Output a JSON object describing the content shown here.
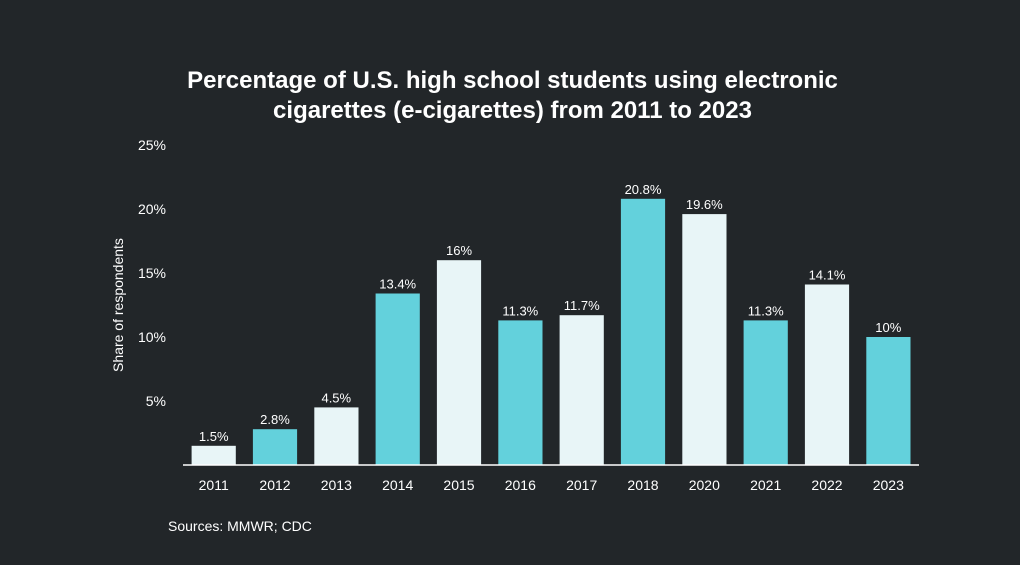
{
  "chart_data": {
    "type": "bar",
    "title": "Percentage of U.S. high school students using electronic cigarettes (e-cigarettes) from 2011 to 2023",
    "xlabel": "",
    "ylabel": "Share of respondents",
    "ylim": [
      0,
      25
    ],
    "yticks": [
      5,
      10,
      15,
      20,
      25
    ],
    "ytick_labels": [
      "5%",
      "10%",
      "15%",
      "20%",
      "25%"
    ],
    "categories": [
      "2011",
      "2012",
      "2013",
      "2014",
      "2015",
      "2016",
      "2017",
      "2018",
      "2020",
      "2021",
      "2022",
      "2023"
    ],
    "values": [
      1.5,
      2.8,
      4.5,
      13.4,
      16,
      11.3,
      11.7,
      20.8,
      19.6,
      11.3,
      14.1,
      10
    ],
    "value_labels": [
      "1.5%",
      "2.8%",
      "4.5%",
      "13.4%",
      "16%",
      "11.3%",
      "11.7%",
      "20.8%",
      "19.6%",
      "11.3%",
      "14.1%",
      "10%"
    ],
    "grid": false,
    "legend": "none",
    "source": "Sources: MMWR; CDC"
  },
  "colors": {
    "background": "#222629",
    "bar_light": "#e8f5f7",
    "bar_teal": "#63d1dc",
    "text": "#ffffff",
    "axis": "#ffffff"
  }
}
